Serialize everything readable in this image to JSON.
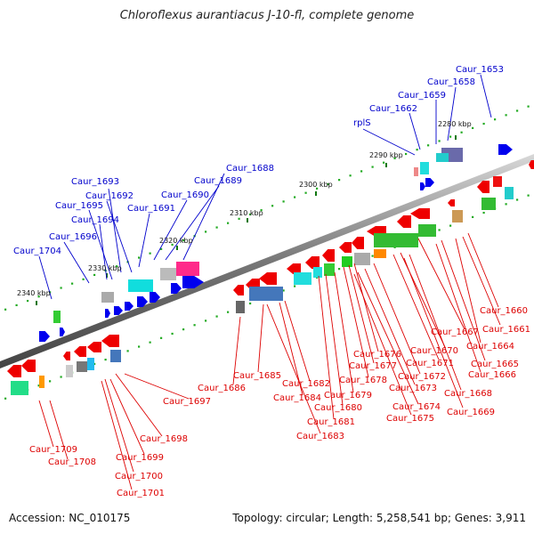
{
  "title": "Chloroflexus aurantiacus J-10-fl, complete genome",
  "footer": {
    "accession": "Accession: NC_010175",
    "topology": "Topology: circular; Length: 5,258,541 bp; Genes: 3,911"
  },
  "colors": {
    "top_strand_label": "#0000cc",
    "bottom_strand_label": "#dd0000"
  },
  "ticks": [
    {
      "label": "2280 kbp",
      "bp": 2280000
    },
    {
      "label": "2290 kbp",
      "bp": 2290000
    },
    {
      "label": "2300 kbp",
      "bp": 2300000
    },
    {
      "label": "2310 kbp",
      "bp": 2310000
    },
    {
      "label": "2320 kbp",
      "bp": 2320000
    },
    {
      "label": "2330 kbp",
      "bp": 2330000
    },
    {
      "label": "2340 kbp",
      "bp": 2340000
    }
  ],
  "top_genes": [
    "Caur_1653",
    "Caur_1658",
    "Caur_1659",
    "Caur_1662",
    "rplS",
    "Caur_1688",
    "Caur_1689",
    "Caur_1690",
    "Caur_1691",
    "Caur_1692",
    "Caur_1693",
    "Caur_1695",
    "Caur_1694",
    "Caur_1696",
    "Caur_1704"
  ],
  "bottom_genes": [
    "Caur_1660",
    "Caur_1661",
    "Caur_1667",
    "Caur_1664",
    "Caur_1665",
    "Caur_1666",
    "Caur_1670",
    "Caur_1671",
    "Caur_1668",
    "Caur_1669",
    "Caur_1676",
    "Caur_1677",
    "Caur_1672",
    "Caur_1678",
    "Caur_1673",
    "Caur_1679",
    "Caur_1674",
    "Caur_1675",
    "Caur_1680",
    "Caur_1681",
    "Caur_1682",
    "Caur_1684",
    "Caur_1683",
    "Caur_1685",
    "Caur_1686",
    "Caur_1697",
    "Caur_1698",
    "Caur_1699",
    "Caur_1700",
    "Caur_1701",
    "Caur_1709",
    "Caur_1708"
  ]
}
